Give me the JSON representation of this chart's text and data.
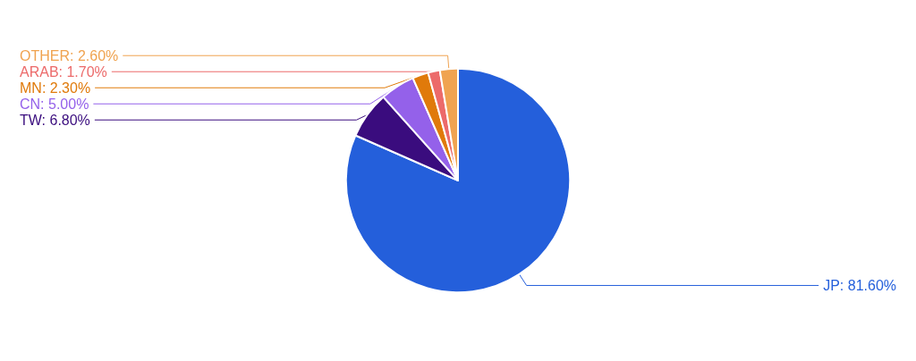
{
  "chart_data": {
    "type": "pie",
    "categories": [
      "JP",
      "TW",
      "CN",
      "MN",
      "ARAB",
      "OTHER"
    ],
    "values": [
      81.6,
      6.8,
      5.0,
      2.3,
      1.7,
      2.6
    ],
    "value_labels": [
      "81.60%",
      "6.80%",
      "5.00%",
      "2.30%",
      "1.70%",
      "2.60%"
    ],
    "colors": [
      "#245fdb",
      "#3a0c7e",
      "#9461ea",
      "#e07a0a",
      "#ec6a6a",
      "#f0a350"
    ],
    "legend": false
  }
}
